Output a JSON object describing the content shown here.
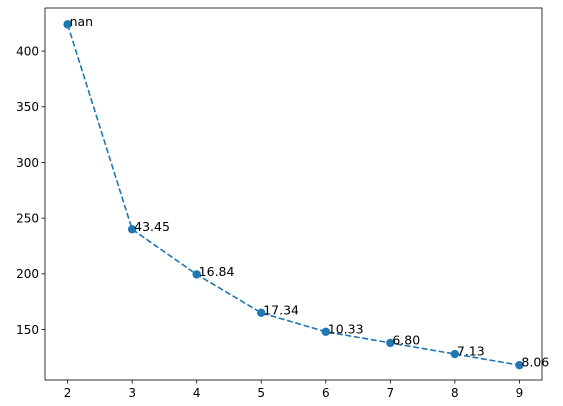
{
  "chart_data": {
    "type": "line",
    "title": "",
    "xlabel": "",
    "ylabel": "",
    "x": [
      2,
      3,
      4,
      5,
      6,
      7,
      8,
      9
    ],
    "series": [
      {
        "values": [
          424,
          240,
          199.5,
          165,
          148,
          138,
          128,
          118
        ],
        "labels": [
          "nan",
          "43.45",
          "16.84",
          "17.34",
          "10.33",
          "6.80",
          "7.13",
          "8.06"
        ],
        "color": "#1f77b4",
        "line_style": "dashed",
        "marker": "circle"
      }
    ],
    "xlim": [
      1.65,
      9.35
    ],
    "ylim": [
      104.7,
      438.7
    ],
    "x_ticks": [
      "2",
      "3",
      "4",
      "5",
      "6",
      "7",
      "8",
      "9"
    ],
    "y_ticks": [
      "150",
      "200",
      "250",
      "300",
      "350",
      "400"
    ],
    "grid": false,
    "legend": "none"
  }
}
